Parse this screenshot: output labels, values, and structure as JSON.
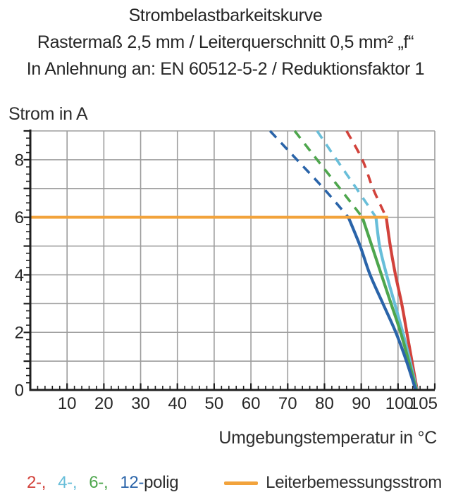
{
  "title": {
    "line1": "Strombelastbarkeitskurve",
    "line2": "Rastermaß 2,5 mm / Leiterquerschnitt 0,5 mm² „f“",
    "line3": "In Anlehnung an: EN 60512-5-2 / Reduktionsfaktor 1"
  },
  "chart_data": {
    "type": "line",
    "title": "Strombelastbarkeitskurve",
    "xlabel": "Umgebungstemperatur in °C",
    "ylabel": "Strom in A",
    "xlim": [
      0,
      110
    ],
    "ylim": [
      0,
      9
    ],
    "grid": {
      "x_step": 10,
      "y_step": 1,
      "color": "#9d9d9d",
      "on": true
    },
    "x_ticks": {
      "label_values": [
        10,
        20,
        30,
        40,
        50,
        60,
        70,
        80,
        90,
        100,
        105
      ],
      "major_step": 10,
      "minor_step": 2
    },
    "y_ticks": {
      "label_values": [
        0,
        2,
        4,
        6,
        8
      ],
      "major_step": 1,
      "minor_step": 0.25
    },
    "axis_color": "#1f1f1f",
    "rated_current_line": {
      "value": 6,
      "x_start": 0,
      "x_end": 97.3,
      "color": "#f2a33c",
      "label": "Leiterbemessungsstrom"
    },
    "series": [
      {
        "name": "2-polig",
        "color": "#d2423b",
        "dashed_points": [
          [
            86.0,
            9
          ],
          [
            90.3,
            8
          ],
          [
            93.2,
            7
          ],
          [
            96.8,
            6
          ]
        ],
        "solid_points": [
          [
            96.8,
            6
          ],
          [
            97.9,
            5
          ],
          [
            99.3,
            4
          ],
          [
            101.0,
            3
          ],
          [
            102.4,
            2
          ],
          [
            103.8,
            1
          ],
          [
            105.2,
            0
          ]
        ]
      },
      {
        "name": "4-polig",
        "color": "#68bed9",
        "dashed_points": [
          [
            78.0,
            9
          ],
          [
            83.3,
            8
          ],
          [
            88.7,
            7
          ],
          [
            94.0,
            6
          ]
        ],
        "solid_points": [
          [
            94.0,
            6
          ],
          [
            95.0,
            5
          ],
          [
            96.9,
            4
          ],
          [
            99.1,
            3
          ],
          [
            101.3,
            2
          ],
          [
            103.3,
            1
          ],
          [
            105.1,
            0
          ]
        ]
      },
      {
        "name": "6-polig",
        "color": "#4ea64d",
        "dashed_points": [
          [
            71.9,
            9
          ],
          [
            78.0,
            8
          ],
          [
            84.2,
            7
          ],
          [
            90.3,
            6
          ]
        ],
        "solid_points": [
          [
            90.3,
            6
          ],
          [
            92.9,
            5
          ],
          [
            95.5,
            4
          ],
          [
            98.1,
            3
          ],
          [
            100.7,
            2
          ],
          [
            102.9,
            1
          ],
          [
            105.0,
            0
          ]
        ]
      },
      {
        "name": "12-polig",
        "color": "#2a64a9",
        "dashed_points": [
          [
            65.2,
            9
          ],
          [
            72.5,
            8
          ],
          [
            79.8,
            7
          ],
          [
            86.5,
            6
          ]
        ],
        "solid_points": [
          [
            86.5,
            6
          ],
          [
            89.7,
            5
          ],
          [
            92.4,
            4
          ],
          [
            95.9,
            3
          ],
          [
            99.4,
            2
          ],
          [
            102.3,
            1
          ],
          [
            104.8,
            0
          ]
        ]
      }
    ]
  },
  "legend": {
    "pole_items": [
      {
        "label": "2-,",
        "color": "#d2423b"
      },
      {
        "label": "4-,",
        "color": "#68bed9"
      },
      {
        "label": "6-,",
        "color": "#4ea64d"
      },
      {
        "label": "12-",
        "color": "#2a64a9"
      }
    ],
    "pole_suffix": "polig",
    "rated_label": "Leiterbemessungsstrom"
  }
}
